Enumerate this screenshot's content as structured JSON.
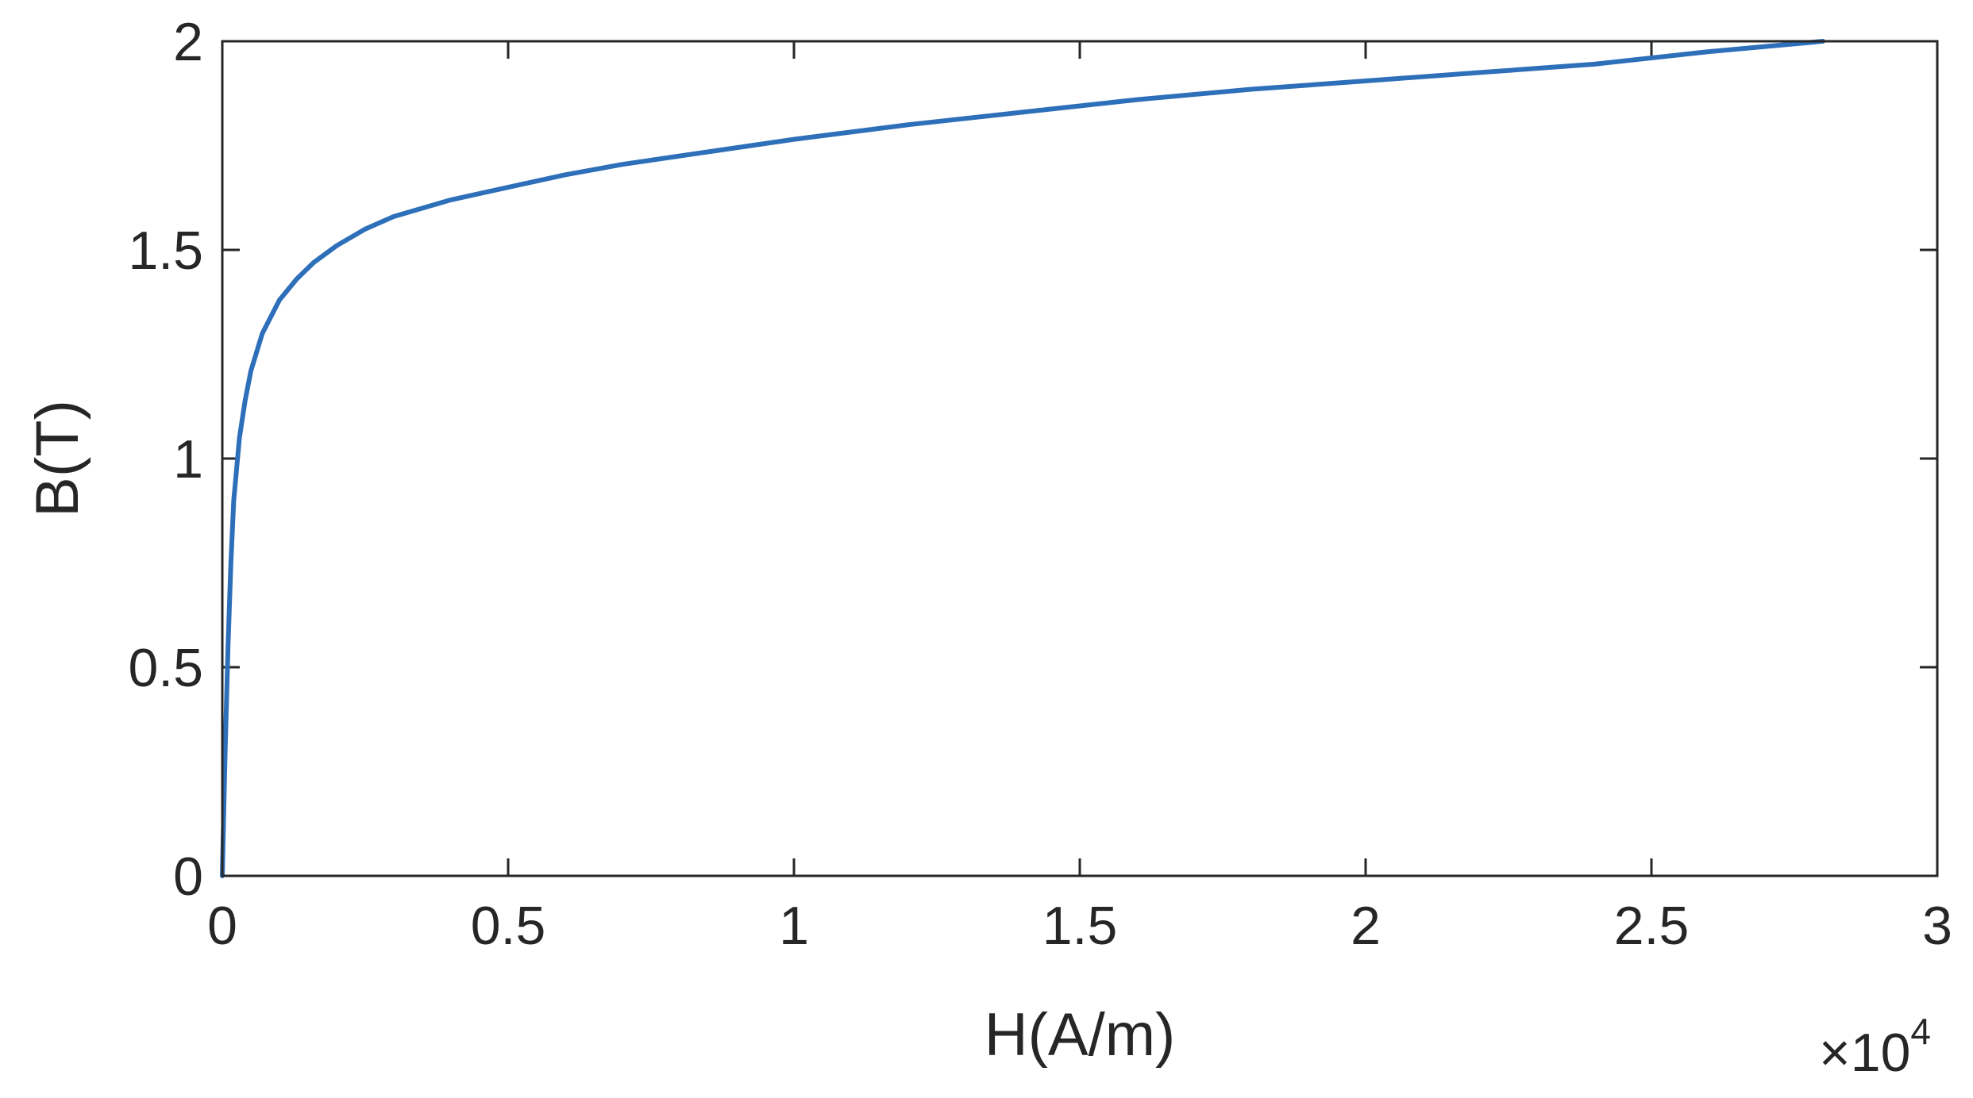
{
  "chart_data": {
    "type": "line",
    "title": "",
    "xlabel": "H(A/m)",
    "ylabel": "B(T)",
    "x_multiplier_label": {
      "base": "×10",
      "exponent": "4"
    },
    "xlim": [
      0,
      3
    ],
    "ylim": [
      0,
      2
    ],
    "x_ticks": [
      "0",
      "0.5",
      "1",
      "1.5",
      "2",
      "2.5",
      "3"
    ],
    "y_ticks": [
      "0",
      "0.5",
      "1",
      "1.5",
      "2"
    ],
    "grid": false,
    "line_color": "#2e6fba",
    "series": [
      {
        "x": [
          0,
          0.005,
          0.01,
          0.015,
          0.02,
          0.03,
          0.04,
          0.05,
          0.07,
          0.1,
          0.13,
          0.16,
          0.2,
          0.25,
          0.3,
          0.4,
          0.5,
          0.6,
          0.7,
          0.8,
          1.0,
          1.2,
          1.4,
          1.6,
          1.8,
          2.0,
          2.2,
          2.4,
          2.6,
          2.8
        ],
        "y": [
          0,
          0.3,
          0.55,
          0.75,
          0.9,
          1.05,
          1.14,
          1.21,
          1.3,
          1.38,
          1.43,
          1.47,
          1.51,
          1.55,
          1.58,
          1.62,
          1.65,
          1.68,
          1.705,
          1.725,
          1.765,
          1.8,
          1.83,
          1.86,
          1.885,
          1.905,
          1.925,
          1.945,
          1.975,
          2.0
        ]
      }
    ]
  }
}
